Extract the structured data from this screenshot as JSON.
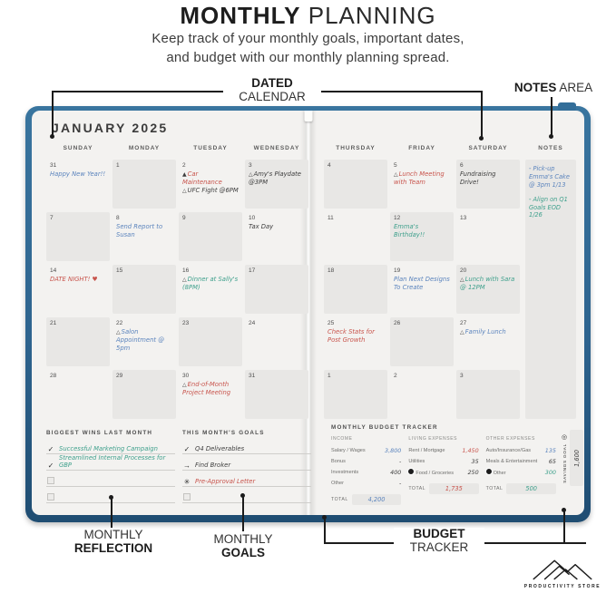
{
  "header": {
    "title_bold": "MONTHLY",
    "title_light": " PLANNING",
    "subtitle_line1": "Keep track of your monthly goals, important dates,",
    "subtitle_line2": "and budget with our monthly planning spread."
  },
  "annotations": {
    "dated_bold": "DATED",
    "dated_light": "CALENDAR",
    "notes_bold": "NOTES",
    "notes_light": " AREA",
    "reflection_light": "MONTHLY",
    "reflection_bold": "REFLECTION",
    "goals_light": "MONTHLY",
    "goals_bold": "GOALS",
    "budget_bold": "BUDGET",
    "budget_light": "TRACKER"
  },
  "colors": {
    "blue": "#5b84bd",
    "red": "#c8544c",
    "green": "#3fa08c",
    "dark": "#3d3d3d",
    "cover_blue": "#2e648f"
  },
  "planner": {
    "month_title": "JANUARY 2025",
    "day_headers_left": [
      "SUNDAY",
      "MONDAY",
      "TUESDAY",
      "WEDNESDAY"
    ],
    "day_headers_right": [
      "THURSDAY",
      "FRIDAY",
      "SATURDAY"
    ],
    "notes_header": "NOTES",
    "weeks_left": [
      [
        {
          "day": "31",
          "shaded": false,
          "entries": [
            {
              "text": "Happy New Year!!",
              "color": "blue"
            }
          ]
        },
        {
          "day": "1",
          "shaded": true,
          "entries": []
        },
        {
          "day": "2",
          "shaded": false,
          "entries": [
            {
              "icon": "triangle-filled",
              "text": "Car Maintenance",
              "color": "red"
            },
            {
              "icon": "triangle-outline",
              "text": "UFC Fight @6PM",
              "color": "dark"
            }
          ]
        },
        {
          "day": "3",
          "shaded": true,
          "entries": [
            {
              "icon": "triangle-outline",
              "text": "Amy's Playdate @3PM",
              "color": "dark"
            }
          ]
        }
      ],
      [
        {
          "day": "7",
          "shaded": true,
          "entries": []
        },
        {
          "day": "8",
          "shaded": false,
          "entries": [
            {
              "text": "Send Report to Susan",
              "color": "blue"
            }
          ]
        },
        {
          "day": "9",
          "shaded": true,
          "entries": []
        },
        {
          "day": "10",
          "shaded": false,
          "entries": [
            {
              "text": "Tax Day",
              "color": "dark"
            }
          ]
        }
      ],
      [
        {
          "day": "14",
          "shaded": false,
          "entries": [
            {
              "text": "DATE NIGHT! ♥",
              "color": "red"
            }
          ]
        },
        {
          "day": "15",
          "shaded": true,
          "entries": []
        },
        {
          "day": "16",
          "shaded": false,
          "entries": [
            {
              "icon": "triangle-outline",
              "text": "Dinner at Sally's (8PM)",
              "color": "green"
            }
          ]
        },
        {
          "day": "17",
          "shaded": true,
          "entries": []
        }
      ],
      [
        {
          "day": "21",
          "shaded": true,
          "entries": []
        },
        {
          "day": "22",
          "shaded": false,
          "entries": [
            {
              "icon": "triangle-outline",
              "text": "Salon Appointment @ 5pm",
              "color": "blue"
            }
          ]
        },
        {
          "day": "23",
          "shaded": true,
          "entries": []
        },
        {
          "day": "24",
          "shaded": false,
          "entries": []
        }
      ],
      [
        {
          "day": "28",
          "shaded": false,
          "entries": []
        },
        {
          "day": "29",
          "shaded": true,
          "entries": []
        },
        {
          "day": "30",
          "shaded": false,
          "entries": [
            {
              "icon": "triangle-outline",
              "text": "End-of-Month Project Meeting",
              "color": "red"
            }
          ]
        },
        {
          "day": "31",
          "shaded": true,
          "entries": []
        }
      ]
    ],
    "weeks_right": [
      [
        {
          "day": "4",
          "shaded": true,
          "entries": []
        },
        {
          "day": "5",
          "shaded": false,
          "entries": [
            {
              "icon": "triangle-outline",
              "text": "Lunch Meeting with Team",
              "color": "red"
            }
          ]
        },
        {
          "day": "6",
          "shaded": true,
          "entries": [
            {
              "text": "Fundraising Drive!",
              "color": "dark"
            }
          ]
        }
      ],
      [
        {
          "day": "11",
          "shaded": false,
          "entries": []
        },
        {
          "day": "12",
          "shaded": true,
          "entries": [
            {
              "text": "Emma's Birthday!!",
              "color": "green"
            }
          ]
        },
        {
          "day": "13",
          "shaded": false,
          "entries": []
        }
      ],
      [
        {
          "day": "18",
          "shaded": true,
          "entries": []
        },
        {
          "day": "19",
          "shaded": false,
          "entries": [
            {
              "text": "Plan Next Designs To Create",
              "color": "blue"
            }
          ]
        },
        {
          "day": "20",
          "shaded": true,
          "entries": [
            {
              "icon": "triangle-outline",
              "text": "Lunch with Sara @ 12PM",
              "color": "green"
            }
          ]
        }
      ],
      [
        {
          "day": "25",
          "shaded": false,
          "entries": [
            {
              "text": "Check Stats for Post Growth",
              "color": "red"
            }
          ]
        },
        {
          "day": "26",
          "shaded": true,
          "entries": []
        },
        {
          "day": "27",
          "shaded": false,
          "entries": [
            {
              "icon": "triangle-outline",
              "text": "Family Lunch",
              "color": "blue"
            }
          ]
        }
      ],
      [
        {
          "day": "1",
          "shaded": true,
          "entries": []
        },
        {
          "day": "2",
          "shaded": false,
          "entries": []
        },
        {
          "day": "3",
          "shaded": true,
          "entries": []
        }
      ]
    ],
    "notes_entries": [
      {
        "text": "- Pick-up Emma's Cake @ 3pm 1/13",
        "color": "blue"
      },
      {
        "text": "- Align on Q1 Goals EOD 1/26",
        "color": "green"
      }
    ],
    "wins": {
      "title": "BIGGEST WINS LAST MONTH",
      "items": [
        {
          "mark": "check",
          "text": "Successful Marketing Campaign",
          "color": "green"
        },
        {
          "mark": "check",
          "text": "Streamlined Internal Processes for GBP",
          "color": "green"
        },
        {
          "mark": "box",
          "text": "",
          "color": "dark"
        },
        {
          "mark": "box",
          "text": "",
          "color": "dark"
        }
      ]
    },
    "goals": {
      "title": "THIS MONTH'S GOALS",
      "items": [
        {
          "mark": "check",
          "text": "Q4 Deliverables",
          "color": "dark"
        },
        {
          "mark": "arrow",
          "text": "Find Broker",
          "color": "dark"
        },
        {
          "mark": "star",
          "text": "Pre-Approval Letter",
          "color": "red"
        },
        {
          "mark": "box",
          "text": "",
          "color": "dark"
        }
      ]
    },
    "budget": {
      "title": "MONTHLY BUDGET TRACKER",
      "columns": [
        {
          "header": "INCOME",
          "total_label": "TOTAL",
          "total": "4,200",
          "total_color": "blue",
          "rows": [
            {
              "label": "Salary / Wages",
              "value": "3,800",
              "color": "blue"
            },
            {
              "label": "Bonus",
              "value": "-",
              "color": "dark"
            },
            {
              "label": "Investments",
              "value": "400",
              "color": "dark"
            },
            {
              "label": "Other",
              "value": "-",
              "color": "dark"
            }
          ]
        },
        {
          "header": "LIVING EXPENSES",
          "total_label": "TOTAL",
          "total": "1,735",
          "total_color": "red",
          "rows": [
            {
              "label": "Rent / Mortgage",
              "value": "1,450",
              "color": "red"
            },
            {
              "label": "Utilities",
              "value": "35",
              "color": "dark"
            },
            {
              "label": "Food / Groceries",
              "value": "250",
              "color": "dark",
              "dot": true
            }
          ]
        },
        {
          "header": "OTHER EXPENSES",
          "total_label": "TOTAL",
          "total": "500",
          "total_color": "green",
          "rows": [
            {
              "label": "Auto/Insurance/Gas",
              "value": "135",
              "color": "blue"
            },
            {
              "label": "Meals & Entertainment",
              "value": "65",
              "color": "dark"
            },
            {
              "label": "Other",
              "value": "300",
              "color": "green",
              "dot": true
            }
          ]
        }
      ],
      "savings_label": "SAVINGS GOAL",
      "savings_value": "1,600"
    }
  },
  "logo": {
    "brand": "PRODUCTIVITY STORE"
  }
}
